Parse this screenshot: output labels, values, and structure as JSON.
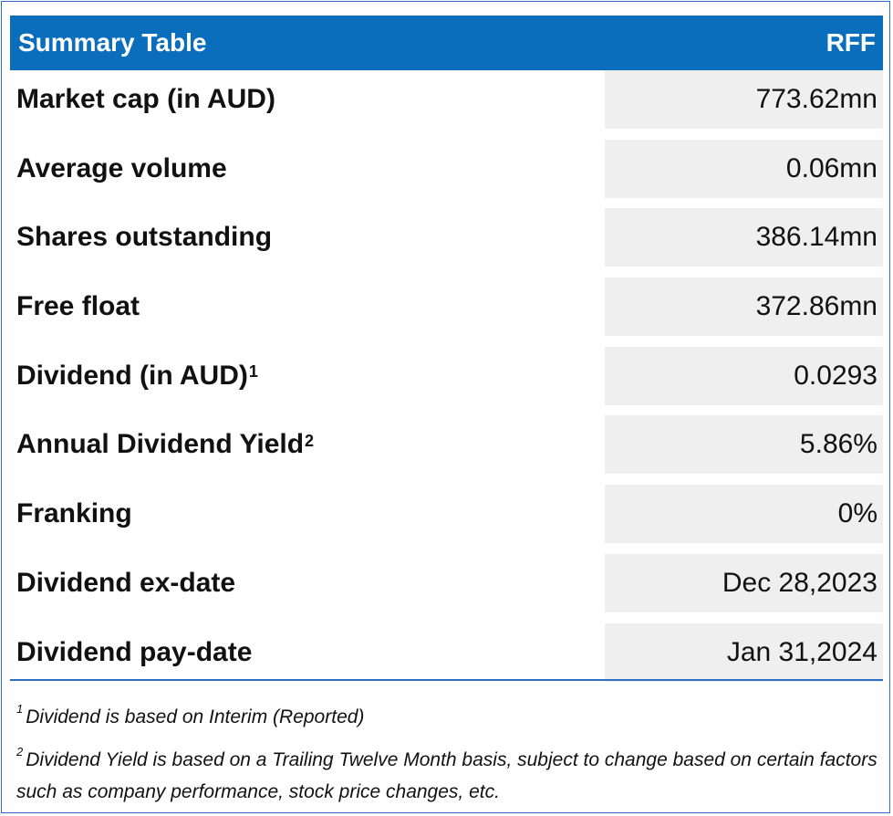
{
  "header": {
    "title": "Summary Table",
    "ticker": "RFF"
  },
  "rows": [
    {
      "label": "Market cap (in AUD)",
      "sup": "",
      "value": "773.62mn"
    },
    {
      "label": "Average volume",
      "sup": "",
      "value": "0.06mn"
    },
    {
      "label": "Shares outstanding",
      "sup": "",
      "value": "386.14mn"
    },
    {
      "label": "Free float",
      "sup": "",
      "value": "372.86mn"
    },
    {
      "label": "Dividend (in AUD)",
      "sup": "1",
      "value": "0.0293"
    },
    {
      "label": "Annual Dividend Yield",
      "sup": "2",
      "value": "5.86%"
    },
    {
      "label": "Franking",
      "sup": "",
      "value": "0%"
    },
    {
      "label": "Dividend ex-date",
      "sup": "",
      "value": "Dec 28,2023"
    },
    {
      "label": "Dividend pay-date",
      "sup": "",
      "value": "Jan 31,2024"
    }
  ],
  "footnotes": [
    {
      "mark": "1",
      "text": "Dividend is based on Interim (Reported)"
    },
    {
      "mark": "2",
      "text": "Dividend Yield is based on a Trailing Twelve Month basis, subject to change based on certain factors such as company performance, stock price changes, etc."
    }
  ],
  "colors": {
    "header_bg": "#0a6ebd",
    "value_cell_bg": "#efefef",
    "border": "#2f6fc2"
  }
}
